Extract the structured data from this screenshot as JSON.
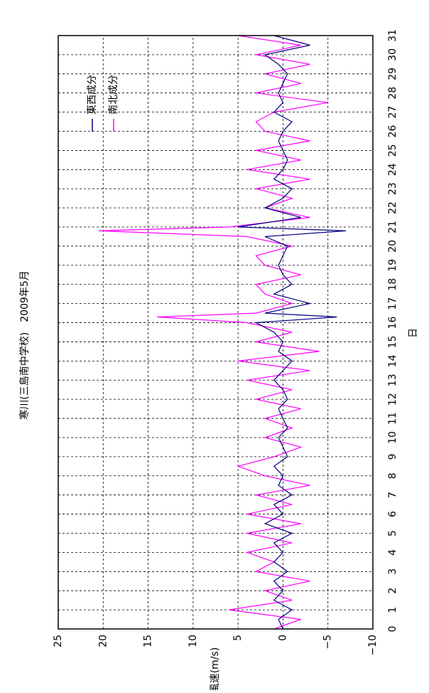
{
  "chart_data": {
    "type": "line",
    "title": "寒川(三島南中学校)　2009年5月",
    "x_label": "日",
    "y_label": "風速(m/s)",
    "x": [
      0,
      0.5,
      1,
      1.5,
      2,
      2.5,
      3,
      3.5,
      4,
      4.5,
      5,
      5.5,
      6,
      6.5,
      7,
      7.5,
      8,
      8.5,
      9,
      9.5,
      10,
      10.5,
      11,
      11.5,
      12,
      12.5,
      13,
      13.5,
      14,
      14.5,
      15,
      15.5,
      16,
      16.3,
      16.5,
      17,
      17.5,
      18,
      18.5,
      19,
      19.5,
      20,
      20.5,
      20.8,
      21,
      21.5,
      22,
      22.5,
      23,
      23.5,
      24,
      24.5,
      25,
      25.5,
      26,
      26.5,
      27,
      27.5,
      28,
      28.5,
      29,
      29.5,
      30,
      30.5,
      31
    ],
    "series": [
      {
        "name": "東西成分",
        "color": "#000080",
        "values": [
          0,
          0.5,
          -1,
          1,
          0,
          1,
          -0.5,
          1,
          0,
          1,
          -1,
          2,
          0,
          1,
          -1,
          0.5,
          0,
          1,
          -0.5,
          0,
          0.5,
          -0.5,
          0,
          0.5,
          -0.5,
          0,
          1,
          0,
          -1,
          0.5,
          0,
          1,
          3,
          -6,
          2,
          -3,
          1,
          -1,
          0,
          0.5,
          0,
          -0.5,
          2,
          -7,
          5,
          -2,
          2,
          0,
          -1,
          1,
          0,
          -0.5,
          0,
          0.5,
          0,
          -1,
          1,
          0,
          0.5,
          0,
          -0.5,
          0.5,
          2,
          -3,
          1
        ]
      },
      {
        "name": "南北成分",
        "color": "#ff00ff",
        "values": [
          1,
          -2,
          6,
          -1,
          2,
          -3,
          3,
          1,
          4,
          -1,
          4,
          -2,
          4,
          -1,
          3,
          -3,
          2,
          5,
          1,
          -2,
          2,
          -1,
          2,
          -2,
          3,
          -1,
          4,
          -3,
          5,
          -4,
          3,
          -1,
          4,
          14,
          3,
          -1,
          2,
          3,
          -2,
          2,
          3,
          -1,
          4,
          20.5,
          6,
          -3,
          2,
          -1,
          3,
          -3,
          4,
          -2,
          3,
          -3,
          2,
          3,
          1,
          -5,
          3,
          -2,
          2,
          -3,
          3,
          -2,
          5
        ]
      }
    ],
    "xlim": [
      0,
      31
    ],
    "xticks": [
      0,
      1,
      2,
      3,
      4,
      5,
      6,
      7,
      8,
      9,
      10,
      11,
      12,
      13,
      14,
      15,
      16,
      17,
      18,
      19,
      20,
      21,
      22,
      23,
      24,
      25,
      26,
      27,
      28,
      29,
      30,
      31
    ],
    "ylim": [
      -10,
      25
    ],
    "yticks": [
      {
        "value": -10,
        "label": "−10"
      },
      {
        "value": -5,
        "label": "−5"
      },
      0,
      5,
      10,
      15,
      20,
      25
    ],
    "grid": true,
    "legend": "upper right"
  }
}
